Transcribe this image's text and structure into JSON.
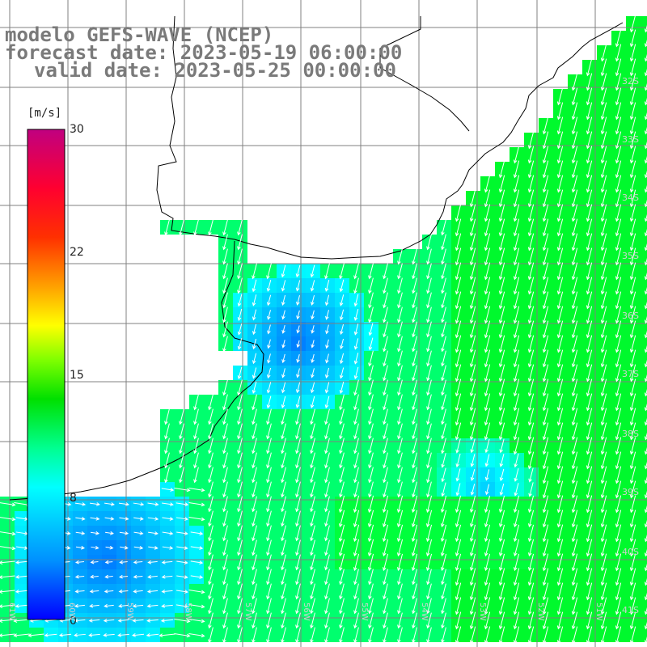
{
  "titles": {
    "model": "modelo GEFS-WAVE (NCEP)",
    "forecast": "forecast date: 2023-05-19 06:00:00",
    "valid": "valid date: 2023-05-25 00:00:00"
  },
  "colorbar": {
    "unit": "[m/s]",
    "ticks": [
      "30",
      "22",
      "15",
      "8",
      "0"
    ],
    "range": [
      0,
      30
    ],
    "colors": [
      "#0000ff",
      "#00b0ff",
      "#00ffff",
      "#00ff40",
      "#00e000",
      "#ffff00",
      "#ff8000",
      "#ff0000",
      "#ff0060",
      "#c00080"
    ]
  },
  "map": {
    "land_color": "#ffffff",
    "grid_color": "#808080",
    "lat_labels": [
      "32S",
      "33S",
      "34S",
      "35S",
      "36S",
      "37S",
      "38S",
      "39S",
      "40S",
      "41S"
    ],
    "lon_labels": [
      "61W",
      "60W",
      "59W",
      "58W",
      "57W",
      "56W",
      "55W",
      "54W",
      "53W",
      "52W",
      "51W"
    ]
  }
}
